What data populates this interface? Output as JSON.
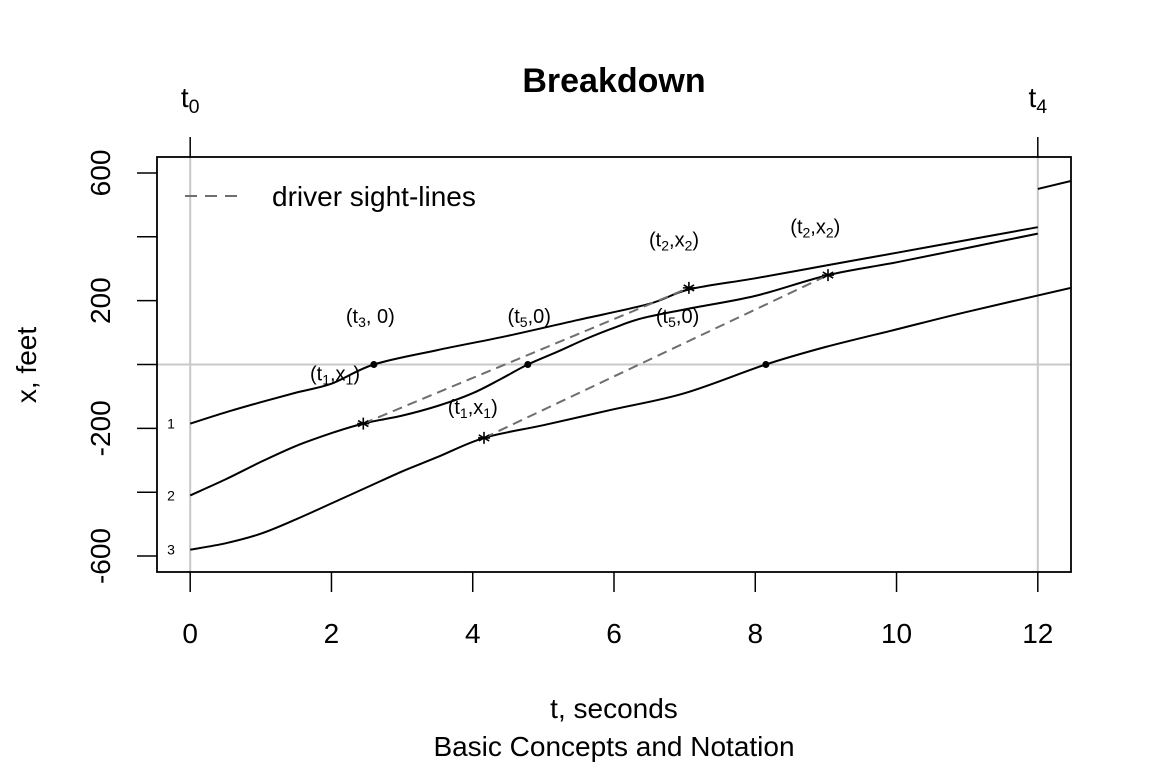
{
  "chart_data": {
    "type": "line",
    "title": "Breakdown",
    "xlabel": "t, seconds",
    "ylabel": "x, feet",
    "subtitle": "Basic Concepts and Notation",
    "xlim": [
      -0.47,
      12.47
    ],
    "ylim": [
      -650,
      650
    ],
    "x_ticks": [
      0,
      2,
      4,
      6,
      8,
      10,
      12
    ],
    "x_tick_labels": [
      "0",
      "2",
      "4",
      "6",
      "8",
      "10",
      "12"
    ],
    "y_ticks": [
      -600,
      -400,
      -200,
      0,
      200,
      400,
      600
    ],
    "y_tick_labels": [
      "-600",
      "",
      "-200",
      "",
      "200",
      "",
      "600"
    ],
    "top_markers": [
      {
        "t": 0,
        "base": "t",
        "sub": "0"
      },
      {
        "t": 12,
        "base": "t",
        "sub": "4"
      }
    ],
    "reference_lines": {
      "vertical_t": [
        0,
        12
      ],
      "horizontal_x": [
        0
      ],
      "color": "#c8c8c8"
    },
    "grid": false,
    "legend": {
      "position": "top-left",
      "entries": [
        {
          "label": "driver sight-lines",
          "style": "dashed",
          "color": "#6e6e6e"
        }
      ]
    },
    "series": [
      {
        "name": "1",
        "points": [
          [
            0,
            -185
          ],
          [
            0.5,
            -150
          ],
          [
            1,
            -118
          ],
          [
            1.5,
            -88
          ],
          [
            2,
            -60
          ],
          [
            2.6,
            0
          ],
          [
            3.5,
            45
          ],
          [
            4.5,
            90
          ],
          [
            5.5,
            140
          ],
          [
            6.5,
            190
          ],
          [
            7.06,
            235
          ],
          [
            8,
            270
          ],
          [
            9,
            310
          ],
          [
            10,
            350
          ],
          [
            11,
            390
          ],
          [
            12,
            430
          ]
        ]
      },
      {
        "name": "2",
        "points": [
          [
            0,
            -410
          ],
          [
            0.5,
            -360
          ],
          [
            1,
            -305
          ],
          [
            1.5,
            -255
          ],
          [
            2,
            -215
          ],
          [
            2.45,
            -185
          ],
          [
            3,
            -160
          ],
          [
            3.5,
            -130
          ],
          [
            4,
            -90
          ],
          [
            4.4,
            -45
          ],
          [
            4.78,
            0
          ],
          [
            5.2,
            40
          ],
          [
            5.6,
            80
          ],
          [
            6,
            115
          ],
          [
            6.4,
            145
          ],
          [
            7.06,
            175
          ],
          [
            8,
            215
          ],
          [
            9.03,
            280
          ],
          [
            10,
            320
          ],
          [
            11,
            365
          ],
          [
            12,
            410
          ]
        ]
      },
      {
        "name": "3",
        "points": [
          [
            0,
            -580
          ],
          [
            0.5,
            -560
          ],
          [
            1,
            -530
          ],
          [
            1.5,
            -485
          ],
          [
            2,
            -435
          ],
          [
            2.5,
            -385
          ],
          [
            3,
            -335
          ],
          [
            3.5,
            -290
          ],
          [
            4.16,
            -230
          ],
          [
            5,
            -190
          ],
          [
            6,
            -140
          ],
          [
            7,
            -90
          ],
          [
            8.15,
            0
          ],
          [
            9,
            55
          ],
          [
            10,
            110
          ],
          [
            11,
            165
          ],
          [
            12.47,
            240
          ]
        ]
      }
    ],
    "extra_segment": {
      "points": [
        [
          12,
          550
        ],
        [
          12.47,
          575
        ]
      ]
    },
    "series_labels_at_start": [
      {
        "label": "1",
        "x_at": -185
      },
      {
        "label": "2",
        "x_at": -410
      },
      {
        "label": "3",
        "x_at": -580
      }
    ],
    "sight_lines": [
      {
        "from": [
          2.45,
          -185
        ],
        "to": [
          7.06,
          240
        ]
      },
      {
        "from": [
          4.16,
          -230
        ],
        "to": [
          9.03,
          280
        ]
      }
    ],
    "dots": [
      [
        2.6,
        0
      ],
      [
        4.78,
        0
      ],
      [
        8.15,
        0
      ]
    ],
    "stars": [
      [
        2.45,
        -185
      ],
      [
        4.16,
        -230
      ],
      [
        7.06,
        240
      ],
      [
        9.03,
        280
      ]
    ],
    "annotations": [
      {
        "base": "(t",
        "sub": "3",
        "rest": ", 0)",
        "t": 2.55,
        "x": 80
      },
      {
        "base": "(t",
        "sub": "5",
        "rest": ",0)",
        "t": 4.8,
        "x": 80
      },
      {
        "base": "(t",
        "sub": "5",
        "rest": ",0)",
        "t": 6.9,
        "x": 80
      },
      {
        "base": "(t",
        "sub": "1",
        "rest": ",x",
        "sub2": "1",
        "rest2": ")",
        "t": 2.05,
        "x": -100
      },
      {
        "base": "(t",
        "sub": "1",
        "rest": ",x",
        "sub2": "1",
        "rest2": ")",
        "t": 4.0,
        "x": -205
      },
      {
        "base": "(t",
        "sub": "2",
        "rest": ",x",
        "sub2": "2",
        "rest2": ")",
        "t": 6.85,
        "x": 320
      },
      {
        "base": "(t",
        "sub": "2",
        "rest": ",x",
        "sub2": "2",
        "rest2": ")",
        "t": 8.85,
        "x": 360
      }
    ]
  }
}
